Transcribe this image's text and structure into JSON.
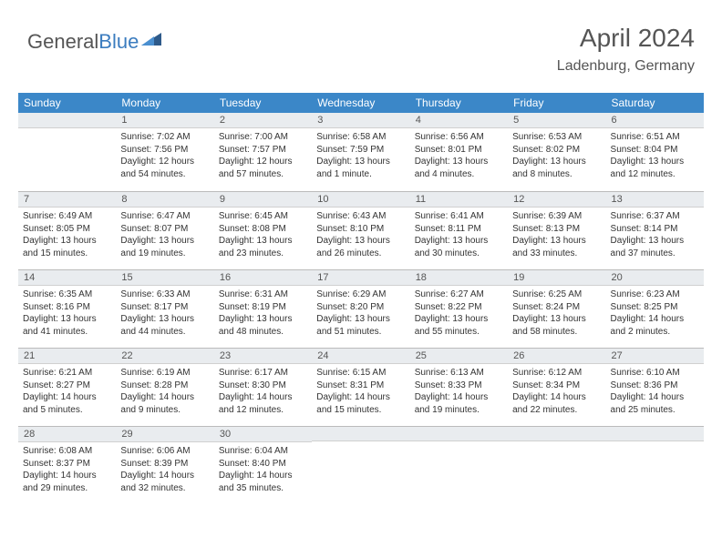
{
  "brand": {
    "part1": "General",
    "part2": "Blue"
  },
  "title": "April 2024",
  "location": "Ladenburg, Germany",
  "colors": {
    "header_bg": "#3b87c8",
    "header_text": "#ffffff",
    "daynum_bg": "#e9ecef",
    "divider": "#2e5a8a",
    "text": "#333333",
    "title_color": "#555555"
  },
  "day_headers": [
    "Sunday",
    "Monday",
    "Tuesday",
    "Wednesday",
    "Thursday",
    "Friday",
    "Saturday"
  ],
  "weeks": [
    [
      null,
      {
        "n": "1",
        "sr": "7:02 AM",
        "ss": "7:56 PM",
        "dl": "12 hours and 54 minutes."
      },
      {
        "n": "2",
        "sr": "7:00 AM",
        "ss": "7:57 PM",
        "dl": "12 hours and 57 minutes."
      },
      {
        "n": "3",
        "sr": "6:58 AM",
        "ss": "7:59 PM",
        "dl": "13 hours and 1 minute."
      },
      {
        "n": "4",
        "sr": "6:56 AM",
        "ss": "8:01 PM",
        "dl": "13 hours and 4 minutes."
      },
      {
        "n": "5",
        "sr": "6:53 AM",
        "ss": "8:02 PM",
        "dl": "13 hours and 8 minutes."
      },
      {
        "n": "6",
        "sr": "6:51 AM",
        "ss": "8:04 PM",
        "dl": "13 hours and 12 minutes."
      }
    ],
    [
      {
        "n": "7",
        "sr": "6:49 AM",
        "ss": "8:05 PM",
        "dl": "13 hours and 15 minutes."
      },
      {
        "n": "8",
        "sr": "6:47 AM",
        "ss": "8:07 PM",
        "dl": "13 hours and 19 minutes."
      },
      {
        "n": "9",
        "sr": "6:45 AM",
        "ss": "8:08 PM",
        "dl": "13 hours and 23 minutes."
      },
      {
        "n": "10",
        "sr": "6:43 AM",
        "ss": "8:10 PM",
        "dl": "13 hours and 26 minutes."
      },
      {
        "n": "11",
        "sr": "6:41 AM",
        "ss": "8:11 PM",
        "dl": "13 hours and 30 minutes."
      },
      {
        "n": "12",
        "sr": "6:39 AM",
        "ss": "8:13 PM",
        "dl": "13 hours and 33 minutes."
      },
      {
        "n": "13",
        "sr": "6:37 AM",
        "ss": "8:14 PM",
        "dl": "13 hours and 37 minutes."
      }
    ],
    [
      {
        "n": "14",
        "sr": "6:35 AM",
        "ss": "8:16 PM",
        "dl": "13 hours and 41 minutes."
      },
      {
        "n": "15",
        "sr": "6:33 AM",
        "ss": "8:17 PM",
        "dl": "13 hours and 44 minutes."
      },
      {
        "n": "16",
        "sr": "6:31 AM",
        "ss": "8:19 PM",
        "dl": "13 hours and 48 minutes."
      },
      {
        "n": "17",
        "sr": "6:29 AM",
        "ss": "8:20 PM",
        "dl": "13 hours and 51 minutes."
      },
      {
        "n": "18",
        "sr": "6:27 AM",
        "ss": "8:22 PM",
        "dl": "13 hours and 55 minutes."
      },
      {
        "n": "19",
        "sr": "6:25 AM",
        "ss": "8:24 PM",
        "dl": "13 hours and 58 minutes."
      },
      {
        "n": "20",
        "sr": "6:23 AM",
        "ss": "8:25 PM",
        "dl": "14 hours and 2 minutes."
      }
    ],
    [
      {
        "n": "21",
        "sr": "6:21 AM",
        "ss": "8:27 PM",
        "dl": "14 hours and 5 minutes."
      },
      {
        "n": "22",
        "sr": "6:19 AM",
        "ss": "8:28 PM",
        "dl": "14 hours and 9 minutes."
      },
      {
        "n": "23",
        "sr": "6:17 AM",
        "ss": "8:30 PM",
        "dl": "14 hours and 12 minutes."
      },
      {
        "n": "24",
        "sr": "6:15 AM",
        "ss": "8:31 PM",
        "dl": "14 hours and 15 minutes."
      },
      {
        "n": "25",
        "sr": "6:13 AM",
        "ss": "8:33 PM",
        "dl": "14 hours and 19 minutes."
      },
      {
        "n": "26",
        "sr": "6:12 AM",
        "ss": "8:34 PM",
        "dl": "14 hours and 22 minutes."
      },
      {
        "n": "27",
        "sr": "6:10 AM",
        "ss": "8:36 PM",
        "dl": "14 hours and 25 minutes."
      }
    ],
    [
      {
        "n": "28",
        "sr": "6:08 AM",
        "ss": "8:37 PM",
        "dl": "14 hours and 29 minutes."
      },
      {
        "n": "29",
        "sr": "6:06 AM",
        "ss": "8:39 PM",
        "dl": "14 hours and 32 minutes."
      },
      {
        "n": "30",
        "sr": "6:04 AM",
        "ss": "8:40 PM",
        "dl": "14 hours and 35 minutes."
      },
      null,
      null,
      null,
      null
    ]
  ],
  "labels": {
    "sunrise": "Sunrise:",
    "sunset": "Sunset:",
    "daylight": "Daylight:"
  }
}
